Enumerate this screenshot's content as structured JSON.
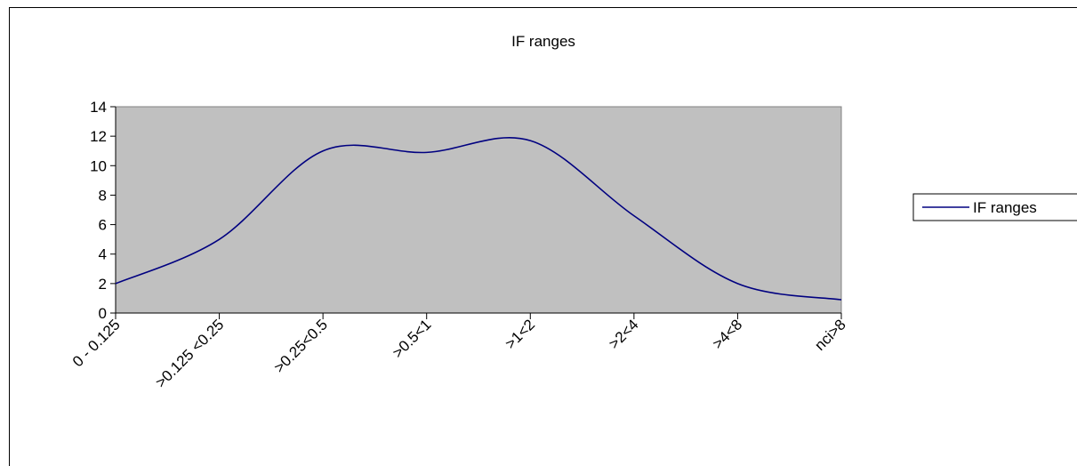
{
  "chart_data": {
    "type": "line",
    "title": "IF ranges",
    "categories": [
      "0 - 0.125",
      ">0.125 <0.25",
      ">0.25<0.5",
      ">0.5<1",
      ">1<2",
      ">2<4",
      ">4<8",
      "nci>8"
    ],
    "series": [
      {
        "name": "IF ranges",
        "color": "#000080",
        "values": [
          2,
          5,
          11,
          10.9,
          11.7,
          6.6,
          2,
          0.9
        ]
      }
    ],
    "ylim": [
      0,
      14
    ],
    "yticks": [
      0,
      2,
      4,
      6,
      8,
      10,
      12,
      14
    ],
    "smooth": true,
    "plot_background": "#c0c0c0"
  }
}
